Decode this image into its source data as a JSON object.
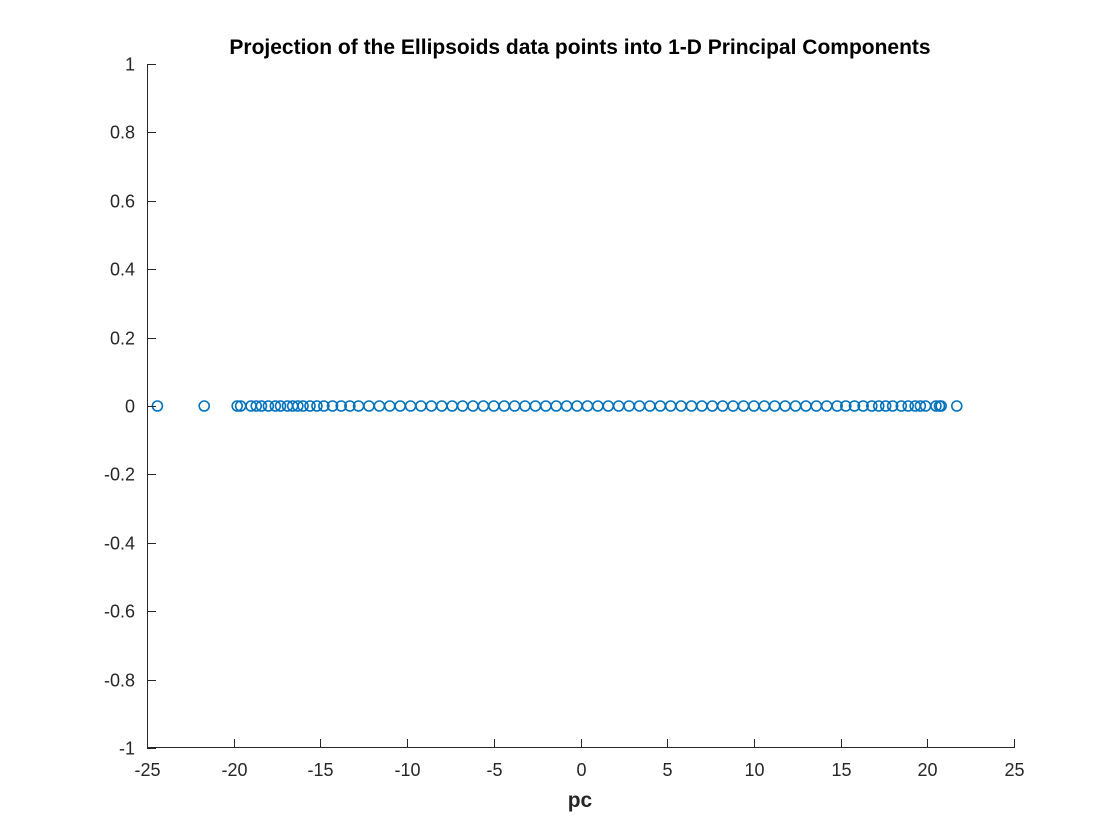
{
  "chart_data": {
    "type": "scatter",
    "title": "Projection of the Ellipsoids data points into 1-D Principal Components",
    "xlabel": "pc",
    "ylabel": "",
    "xlim": [
      -25,
      25
    ],
    "ylim": [
      -1,
      1
    ],
    "xticks": [
      "-25",
      "-20",
      "-15",
      "-10",
      "-5",
      "0",
      "5",
      "10",
      "15",
      "20",
      "25"
    ],
    "yticks": [
      "-1",
      "-0.8",
      "-0.6",
      "-0.4",
      "-0.2",
      "0",
      "0.2",
      "0.4",
      "0.6",
      "0.8",
      "1"
    ],
    "grid": false,
    "marker": "open-circle",
    "color": "#0072BD",
    "series": [
      {
        "points": [
          {
            "x": -24.4,
            "y": 0
          },
          {
            "x": -21.7,
            "y": 0
          },
          {
            "x": -19.8,
            "y": 0
          },
          {
            "x": -19.6,
            "y": 0
          },
          {
            "x": -19.0,
            "y": 0
          },
          {
            "x": -18.7,
            "y": 0
          },
          {
            "x": -18.4,
            "y": 0
          },
          {
            "x": -18.0,
            "y": 0
          },
          {
            "x": -17.6,
            "y": 0
          },
          {
            "x": -17.3,
            "y": 0
          },
          {
            "x": -16.9,
            "y": 0
          },
          {
            "x": -16.6,
            "y": 0
          },
          {
            "x": -16.3,
            "y": 0
          },
          {
            "x": -16.0,
            "y": 0
          },
          {
            "x": -15.6,
            "y": 0
          },
          {
            "x": -15.2,
            "y": 0
          },
          {
            "x": -14.8,
            "y": 0
          },
          {
            "x": -14.3,
            "y": 0
          },
          {
            "x": -13.8,
            "y": 0
          },
          {
            "x": -13.3,
            "y": 0
          },
          {
            "x": -12.8,
            "y": 0
          },
          {
            "x": -12.2,
            "y": 0
          },
          {
            "x": -11.6,
            "y": 0
          },
          {
            "x": -11.0,
            "y": 0
          },
          {
            "x": -10.4,
            "y": 0
          },
          {
            "x": -9.8,
            "y": 0
          },
          {
            "x": -9.2,
            "y": 0
          },
          {
            "x": -8.6,
            "y": 0
          },
          {
            "x": -8.0,
            "y": 0
          },
          {
            "x": -7.4,
            "y": 0
          },
          {
            "x": -6.8,
            "y": 0
          },
          {
            "x": -6.2,
            "y": 0
          },
          {
            "x": -5.6,
            "y": 0
          },
          {
            "x": -5.0,
            "y": 0
          },
          {
            "x": -4.4,
            "y": 0
          },
          {
            "x": -3.8,
            "y": 0
          },
          {
            "x": -3.2,
            "y": 0
          },
          {
            "x": -2.6,
            "y": 0
          },
          {
            "x": -2.0,
            "y": 0
          },
          {
            "x": -1.4,
            "y": 0
          },
          {
            "x": -0.8,
            "y": 0
          },
          {
            "x": -0.2,
            "y": 0
          },
          {
            "x": 0.4,
            "y": 0
          },
          {
            "x": 1.0,
            "y": 0
          },
          {
            "x": 1.6,
            "y": 0
          },
          {
            "x": 2.2,
            "y": 0
          },
          {
            "x": 2.8,
            "y": 0
          },
          {
            "x": 3.4,
            "y": 0
          },
          {
            "x": 4.0,
            "y": 0
          },
          {
            "x": 4.6,
            "y": 0
          },
          {
            "x": 5.2,
            "y": 0
          },
          {
            "x": 5.8,
            "y": 0
          },
          {
            "x": 6.4,
            "y": 0
          },
          {
            "x": 7.0,
            "y": 0
          },
          {
            "x": 7.6,
            "y": 0
          },
          {
            "x": 8.2,
            "y": 0
          },
          {
            "x": 8.8,
            "y": 0
          },
          {
            "x": 9.4,
            "y": 0
          },
          {
            "x": 10.0,
            "y": 0
          },
          {
            "x": 10.6,
            "y": 0
          },
          {
            "x": 11.2,
            "y": 0
          },
          {
            "x": 11.8,
            "y": 0
          },
          {
            "x": 12.4,
            "y": 0
          },
          {
            "x": 13.0,
            "y": 0
          },
          {
            "x": 13.6,
            "y": 0
          },
          {
            "x": 14.2,
            "y": 0
          },
          {
            "x": 14.8,
            "y": 0
          },
          {
            "x": 15.3,
            "y": 0
          },
          {
            "x": 15.8,
            "y": 0
          },
          {
            "x": 16.3,
            "y": 0
          },
          {
            "x": 16.8,
            "y": 0
          },
          {
            "x": 17.2,
            "y": 0
          },
          {
            "x": 17.6,
            "y": 0
          },
          {
            "x": 18.0,
            "y": 0
          },
          {
            "x": 18.5,
            "y": 0
          },
          {
            "x": 18.9,
            "y": 0
          },
          {
            "x": 19.3,
            "y": 0
          },
          {
            "x": 19.6,
            "y": 0
          },
          {
            "x": 19.9,
            "y": 0
          },
          {
            "x": 20.5,
            "y": 0
          },
          {
            "x": 20.7,
            "y": 0
          },
          {
            "x": 20.8,
            "y": 0
          },
          {
            "x": 21.7,
            "y": 0
          }
        ]
      }
    ]
  }
}
